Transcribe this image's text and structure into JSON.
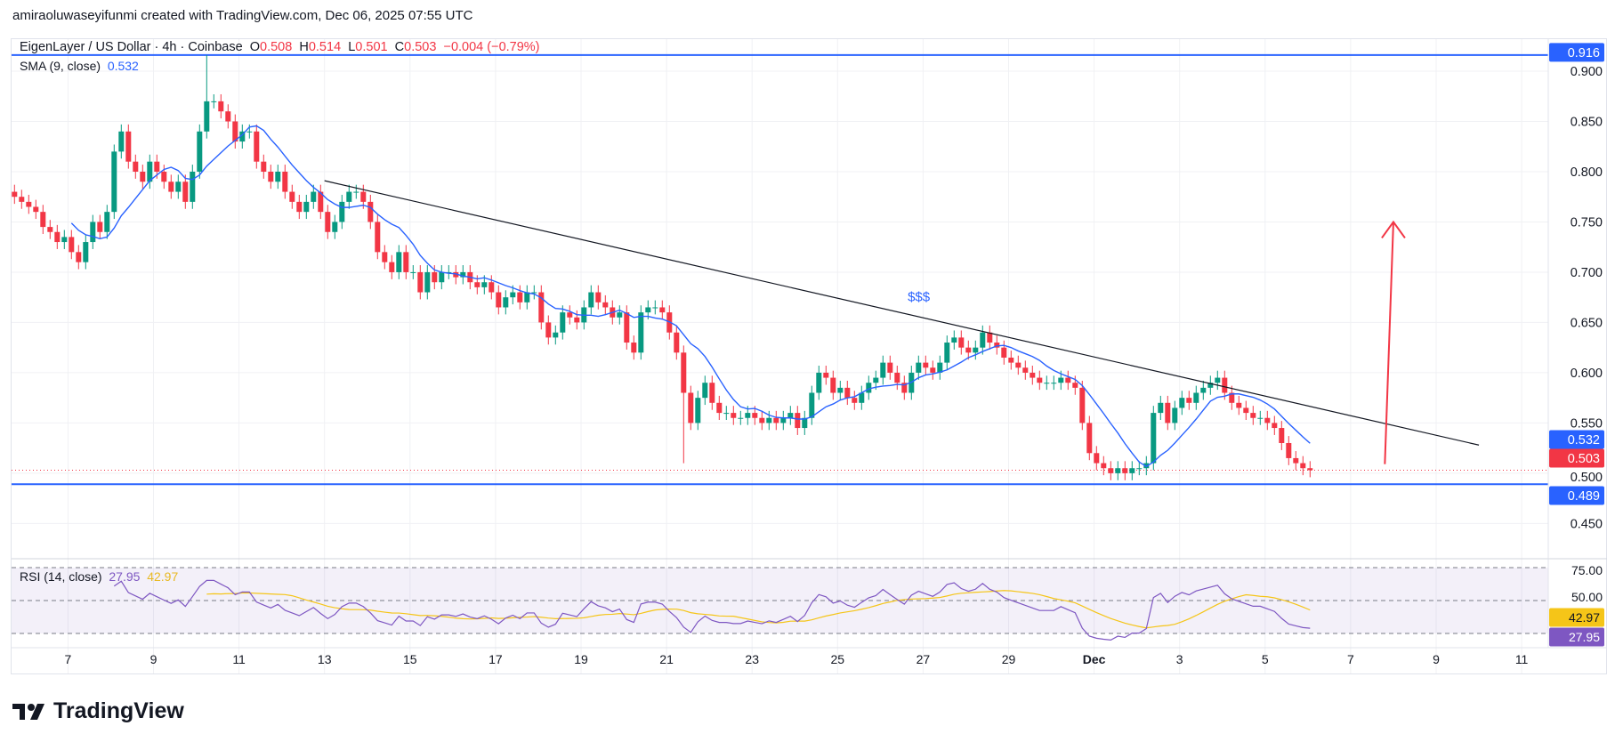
{
  "credit": "amiraoluwaseyifunmi created with TradingView.com, Dec 06, 2025 07:55 UTC",
  "legend": {
    "symbol": "EigenLayer / US Dollar · 4h · Coinbase",
    "o_label": "O",
    "o": "0.508",
    "h_label": "H",
    "h": "0.514",
    "l_label": "L",
    "l": "0.501",
    "c_label": "C",
    "c": "0.503",
    "change": "−0.004 (−0.79%)"
  },
  "sma_legend": {
    "label": "SMA (9, close)",
    "value": "0.532"
  },
  "rsi_legend": {
    "label": "RSI (14, close)",
    "value": "27.95",
    "ma_value": "42.97"
  },
  "price_badges": {
    "top_line": "0.916",
    "sma": "0.532",
    "last": "0.503",
    "support": "0.489"
  },
  "rsi_badges": {
    "ma": "42.97",
    "rsi": "27.95"
  },
  "annotation": "$$$",
  "branding": "TradingView",
  "colors": {
    "up": "#089981",
    "down": "#F23645",
    "sma": "#2962FF",
    "rsi": "#7E57C2",
    "rsi_ma": "#F5C518",
    "hline": "#2962FF",
    "arrow": "#F23645"
  },
  "chart_data": {
    "type": "candlestick",
    "timeframe": "4h",
    "y_ticks": [
      "0.450",
      "0.500",
      "0.550",
      "0.600",
      "0.650",
      "0.700",
      "0.750",
      "0.800",
      "0.850",
      "0.900"
    ],
    "ylim": [
      0.405,
      0.935
    ],
    "x_labels": [
      "7",
      "9",
      "11",
      "13",
      "15",
      "17",
      "19",
      "21",
      "23",
      "25",
      "27",
      "29",
      "Dec",
      "3",
      "5",
      "7",
      "9",
      "11"
    ],
    "closes": [
      0.775,
      0.77,
      0.765,
      0.76,
      0.745,
      0.74,
      0.73,
      0.735,
      0.72,
      0.71,
      0.73,
      0.75,
      0.74,
      0.76,
      0.82,
      0.84,
      0.81,
      0.8,
      0.79,
      0.81,
      0.8,
      0.79,
      0.78,
      0.79,
      0.77,
      0.8,
      0.84,
      0.87,
      0.87,
      0.86,
      0.85,
      0.83,
      0.84,
      0.84,
      0.81,
      0.8,
      0.79,
      0.8,
      0.78,
      0.77,
      0.76,
      0.77,
      0.78,
      0.76,
      0.74,
      0.75,
      0.77,
      0.78,
      0.78,
      0.77,
      0.75,
      0.72,
      0.71,
      0.7,
      0.72,
      0.7,
      0.7,
      0.68,
      0.7,
      0.69,
      0.7,
      0.7,
      0.695,
      0.7,
      0.69,
      0.685,
      0.69,
      0.68,
      0.665,
      0.675,
      0.68,
      0.67,
      0.68,
      0.68,
      0.65,
      0.635,
      0.64,
      0.66,
      0.655,
      0.65,
      0.665,
      0.68,
      0.67,
      0.665,
      0.655,
      0.66,
      0.63,
      0.62,
      0.66,
      0.665,
      0.665,
      0.66,
      0.64,
      0.62,
      0.58,
      0.55,
      0.575,
      0.59,
      0.57,
      0.56,
      0.56,
      0.555,
      0.555,
      0.56,
      0.555,
      0.55,
      0.555,
      0.55,
      0.555,
      0.56,
      0.545,
      0.555,
      0.58,
      0.6,
      0.595,
      0.58,
      0.585,
      0.575,
      0.57,
      0.58,
      0.59,
      0.595,
      0.61,
      0.6,
      0.59,
      0.58,
      0.6,
      0.61,
      0.605,
      0.6,
      0.61,
      0.63,
      0.635,
      0.625,
      0.62,
      0.625,
      0.64,
      0.63,
      0.625,
      0.615,
      0.61,
      0.605,
      0.6,
      0.595,
      0.59,
      0.59,
      0.59,
      0.595,
      0.59,
      0.585,
      0.55,
      0.52,
      0.51,
      0.505,
      0.5,
      0.505,
      0.5,
      0.505,
      0.505,
      0.51,
      0.56,
      0.57,
      0.55,
      0.565,
      0.575,
      0.57,
      0.58,
      0.585,
      0.59,
      0.595,
      0.58,
      0.57,
      0.565,
      0.56,
      0.555,
      0.555,
      0.55,
      0.545,
      0.53,
      0.515,
      0.51,
      0.505,
      0.503
    ],
    "horizontal_lines": [
      0.916,
      0.489
    ],
    "last_price": 0.503,
    "trendline": {
      "from": {
        "date": "Nov 13",
        "price": 0.791
      },
      "to": {
        "date": "Dec 10",
        "price": 0.528
      }
    },
    "arrow": {
      "from": {
        "date": "Dec 7.8",
        "price": 0.509
      },
      "to": {
        "date": "Dec 8",
        "price": 0.75
      }
    },
    "annotation_point": {
      "date": "Nov 26.9",
      "price": 0.671
    },
    "rsi": {
      "levels": [
        75,
        50,
        25
      ],
      "y_ticks": [
        "75.00",
        "50.00"
      ],
      "period": 14,
      "ma_period": 14
    }
  }
}
